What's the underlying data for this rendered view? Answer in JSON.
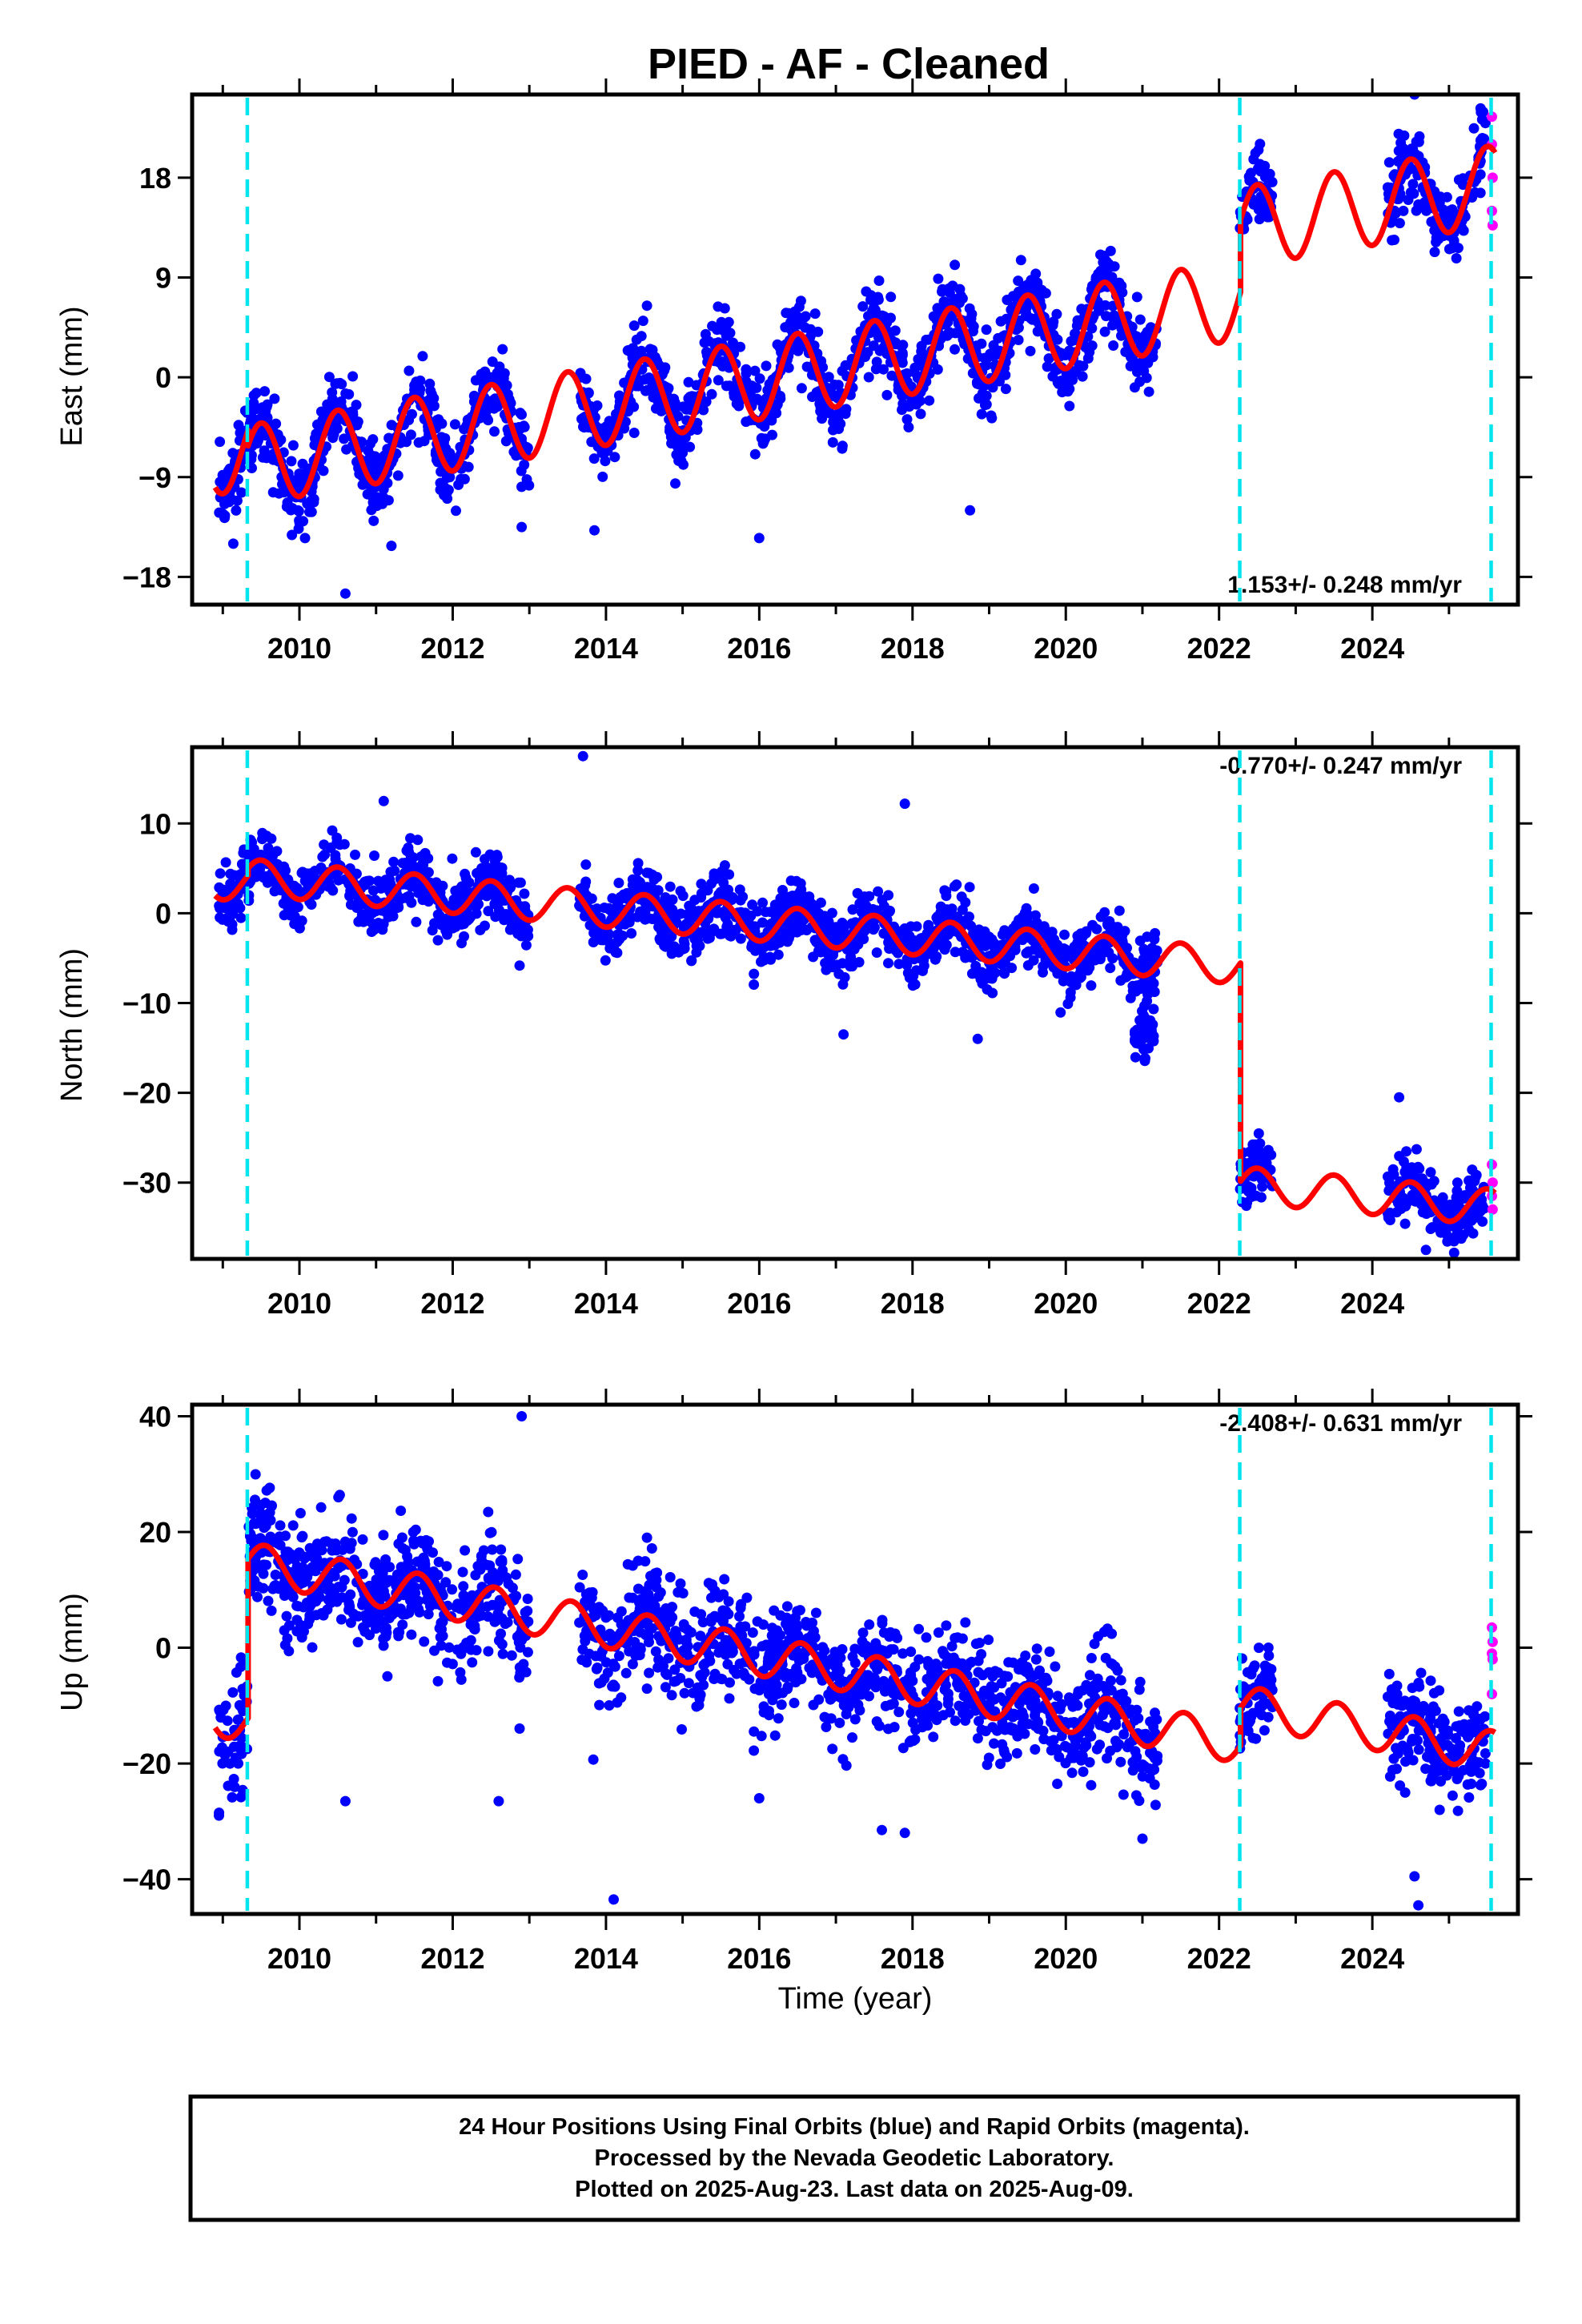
{
  "title": "PIED  - AF - Cleaned",
  "colors": {
    "final": "#0000ff",
    "rapid": "#ff00ff",
    "model": "#ff0000",
    "break": "#00e5ee",
    "frame": "#000000"
  },
  "xaxis": {
    "ticks": [
      2010,
      2012,
      2014,
      2016,
      2018,
      2020,
      2022,
      2024
    ],
    "xlabel": "Time (year)"
  },
  "footer": {
    "line1": "24 Hour Positions Using Final Orbits (blue) and Rapid Orbits (magenta).",
    "line2": "Processed by the Nevada Geodetic Laboratory.",
    "line3": "Plotted on 2025-Aug-23. Last data on 2025-Aug-09."
  },
  "chart_data": [
    {
      "type": "scatter",
      "component": "east",
      "ylabel": "East (mm)",
      "xlim": [
        2008.6,
        2025.9
      ],
      "ylim": [
        -20.5,
        25.5
      ],
      "yticks": [
        -18,
        -9,
        0,
        9,
        18
      ],
      "rate_text": "1.153+/- 0.248 mm/yr",
      "rate_position": "bottom-right",
      "breaks": [
        2009.32,
        2022.27,
        2025.55
      ],
      "gaps": [
        [
          2013.0,
          2013.65
        ],
        [
          2021.2,
          2022.27
        ],
        [
          2022.7,
          2024.2
        ]
      ],
      "rapid_points": [
        [
          2025.56,
          23.5
        ],
        [
          2025.56,
          21.0
        ],
        [
          2025.57,
          18.0
        ],
        [
          2025.56,
          15.0
        ],
        [
          2025.57,
          13.7
        ]
      ],
      "model": {
        "rate_mm_per_yr": 1.153,
        "annual_amp_mm": 3.6,
        "annual_phase_peak_yr": 0.5,
        "segments": [
          {
            "t": [
              2008.9,
              2009.32
            ],
            "offset_at_2009": -6.9
          },
          {
            "t": [
              2009.32,
              2022.27
            ],
            "offset_at_2009": -8.3
          },
          {
            "t": [
              2022.27,
              2025.6
            ],
            "offset_at_2009": -1.8
          }
        ]
      },
      "scatter_sigma_mm": 2.0,
      "outliers": [
        [
          2010.6,
          -19.5
        ],
        [
          2011.2,
          -15.2
        ],
        [
          2012.9,
          -13.5
        ],
        [
          2013.85,
          -13.8
        ],
        [
          2016.0,
          -14.5
        ],
        [
          2018.75,
          -12.0
        ],
        [
          2024.55,
          25.5
        ]
      ]
    },
    {
      "type": "scatter",
      "component": "north",
      "ylabel": "North (mm)",
      "xlim": [
        2008.6,
        2025.9
      ],
      "ylim": [
        -38.5,
        18.5
      ],
      "yticks": [
        -30,
        -20,
        -10,
        0,
        10
      ],
      "rate_text": "-0.770+/- 0.247 mm/yr",
      "rate_position": "top-right",
      "breaks": [
        2009.32,
        2022.27,
        2025.55
      ],
      "gaps": [
        [
          2013.0,
          2013.65
        ],
        [
          2021.2,
          2022.27
        ],
        [
          2022.7,
          2024.2
        ]
      ],
      "rapid_points": [
        [
          2025.56,
          -28.0
        ],
        [
          2025.57,
          -30.0
        ],
        [
          2025.56,
          -31.5
        ],
        [
          2025.57,
          -33.0
        ]
      ],
      "model": {
        "rate_mm_per_yr": -0.77,
        "annual_amp_mm": 2.0,
        "annual_phase_peak_yr": 0.5,
        "segments": [
          {
            "t": [
              2008.9,
              2009.32
            ],
            "offset_at_2009": 3.5
          },
          {
            "t": [
              2009.32,
              2022.27
            ],
            "offset_at_2009": 4.3
          },
          {
            "t": [
              2022.27,
              2025.6
            ],
            "offset_at_2009": -20.0
          }
        ]
      },
      "scatter_sigma_mm": 2.0,
      "extra_clusters": [
        {
          "t": [
            2020.9,
            2021.15
          ],
          "y_center": -13.5,
          "spread": 2.5
        }
      ],
      "outliers": [
        [
          2011.1,
          12.5
        ],
        [
          2013.7,
          17.5
        ],
        [
          2017.9,
          12.2
        ],
        [
          2017.1,
          -13.5
        ],
        [
          2018.85,
          -14.0
        ],
        [
          2024.35,
          -20.5
        ],
        [
          2024.7,
          -37.5
        ]
      ]
    },
    {
      "type": "scatter",
      "component": "up",
      "ylabel": "Up (mm)",
      "xlim": [
        2008.6,
        2025.9
      ],
      "ylim": [
        -46.0,
        42.0
      ],
      "yticks": [
        -40,
        -20,
        0,
        20,
        40
      ],
      "rate_text": "-2.408+/- 0.631 mm/yr",
      "rate_position": "top-right",
      "breaks": [
        2009.32,
        2022.27,
        2025.55
      ],
      "gaps": [
        [
          2013.0,
          2013.65
        ],
        [
          2021.2,
          2022.27
        ],
        [
          2022.7,
          2024.2
        ]
      ],
      "rapid_points": [
        [
          2025.56,
          3.5
        ],
        [
          2025.57,
          1.0
        ],
        [
          2025.56,
          -1.0
        ],
        [
          2025.57,
          -2.0
        ],
        [
          2025.56,
          -8.0
        ]
      ],
      "model": {
        "rate_mm_per_yr": -2.408,
        "annual_amp_mm": 3.5,
        "annual_phase_peak_yr": 0.55,
        "segments": [
          {
            "t": [
              2008.9,
              2009.32
            ],
            "offset_at_2009": -12.0
          },
          {
            "t": [
              2009.32,
              2022.27
            ],
            "offset_at_2009": 15.5
          },
          {
            "t": [
              2022.27,
              2025.6
            ],
            "offset_at_2009": 22.0
          }
        ]
      },
      "scatter_sigma_mm": 5.5,
      "outliers": [
        [
          2012.9,
          40.0
        ],
        [
          2014.1,
          -43.5
        ],
        [
          2010.6,
          -26.5
        ],
        [
          2012.6,
          -26.5
        ],
        [
          2016.0,
          -26.0
        ],
        [
          2017.6,
          -31.5
        ],
        [
          2017.9,
          -32.0
        ],
        [
          2021.0,
          -33.0
        ],
        [
          2024.6,
          -44.5
        ],
        [
          2024.55,
          -39.5
        ],
        [
          2008.95,
          -29.0
        ]
      ]
    }
  ]
}
